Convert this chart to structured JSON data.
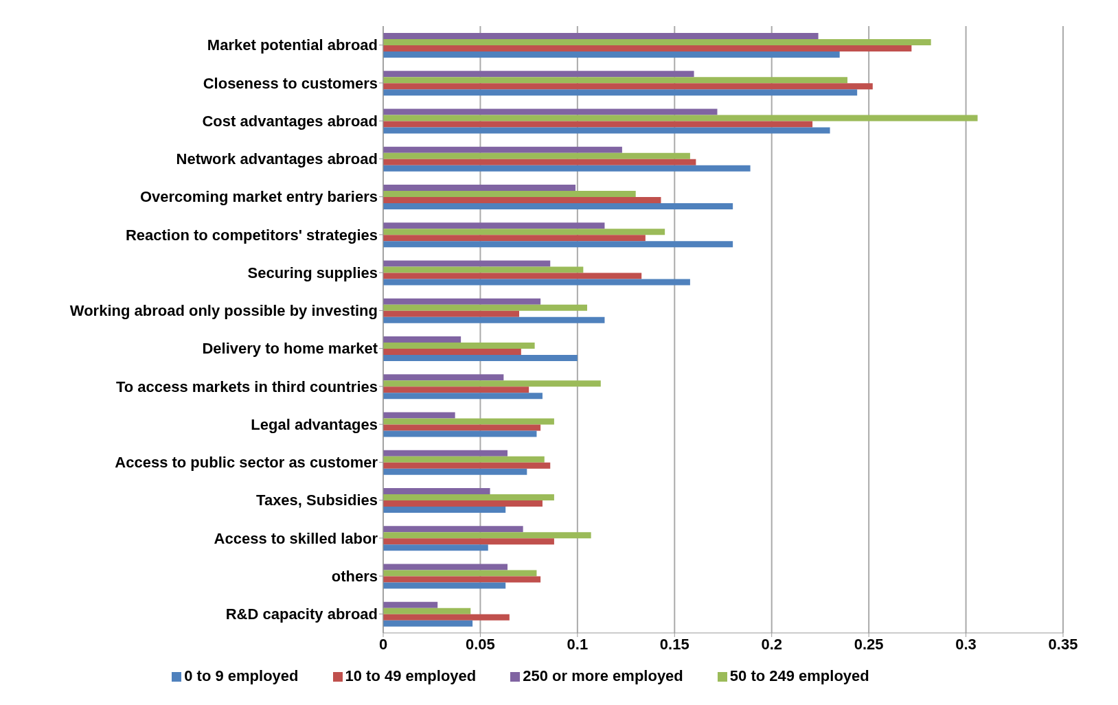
{
  "chart_data": {
    "type": "bar",
    "orientation": "horizontal",
    "categories": [
      "Market potential abroad",
      "Closeness to customers",
      "Cost advantages abroad",
      "Network advantages abroad",
      "Overcoming market entry bariers",
      "Reaction to competitors' strategies",
      "Securing supplies",
      "Working abroad only possible by investing",
      "Delivery to home market",
      "To access markets in third countries",
      "Legal advantages",
      "Access to public sector as customer",
      "Taxes, Subsidies",
      "Access to skilled labor",
      "others",
      "R&D capacity abroad"
    ],
    "series": [
      {
        "name": "250 or more employed",
        "color": "#8064a2",
        "values": [
          0.224,
          0.16,
          0.172,
          0.123,
          0.099,
          0.114,
          0.086,
          0.081,
          0.04,
          0.062,
          0.037,
          0.064,
          0.055,
          0.072,
          0.064,
          0.028
        ]
      },
      {
        "name": "50 to 249 employed",
        "color": "#9bbb59",
        "values": [
          0.282,
          0.239,
          0.306,
          0.158,
          0.13,
          0.145,
          0.103,
          0.105,
          0.078,
          0.112,
          0.088,
          0.083,
          0.088,
          0.107,
          0.079,
          0.045
        ]
      },
      {
        "name": "10 to 49 employed",
        "color": "#c0504d",
        "values": [
          0.272,
          0.252,
          0.221,
          0.161,
          0.143,
          0.135,
          0.133,
          0.07,
          0.071,
          0.075,
          0.081,
          0.086,
          0.082,
          0.088,
          0.081,
          0.065
        ]
      },
      {
        "name": "0 to 9 employed",
        "color": "#4f81bd",
        "values": [
          0.235,
          0.244,
          0.23,
          0.189,
          0.18,
          0.18,
          0.158,
          0.114,
          0.1,
          0.082,
          0.079,
          0.074,
          0.063,
          0.054,
          0.063,
          0.046
        ]
      }
    ],
    "xlim": [
      0,
      0.35
    ],
    "xticks": [
      0,
      0.05,
      0.1,
      0.15,
      0.2,
      0.25,
      0.3,
      0.35
    ],
    "grid": "x",
    "legend": "bottom"
  }
}
